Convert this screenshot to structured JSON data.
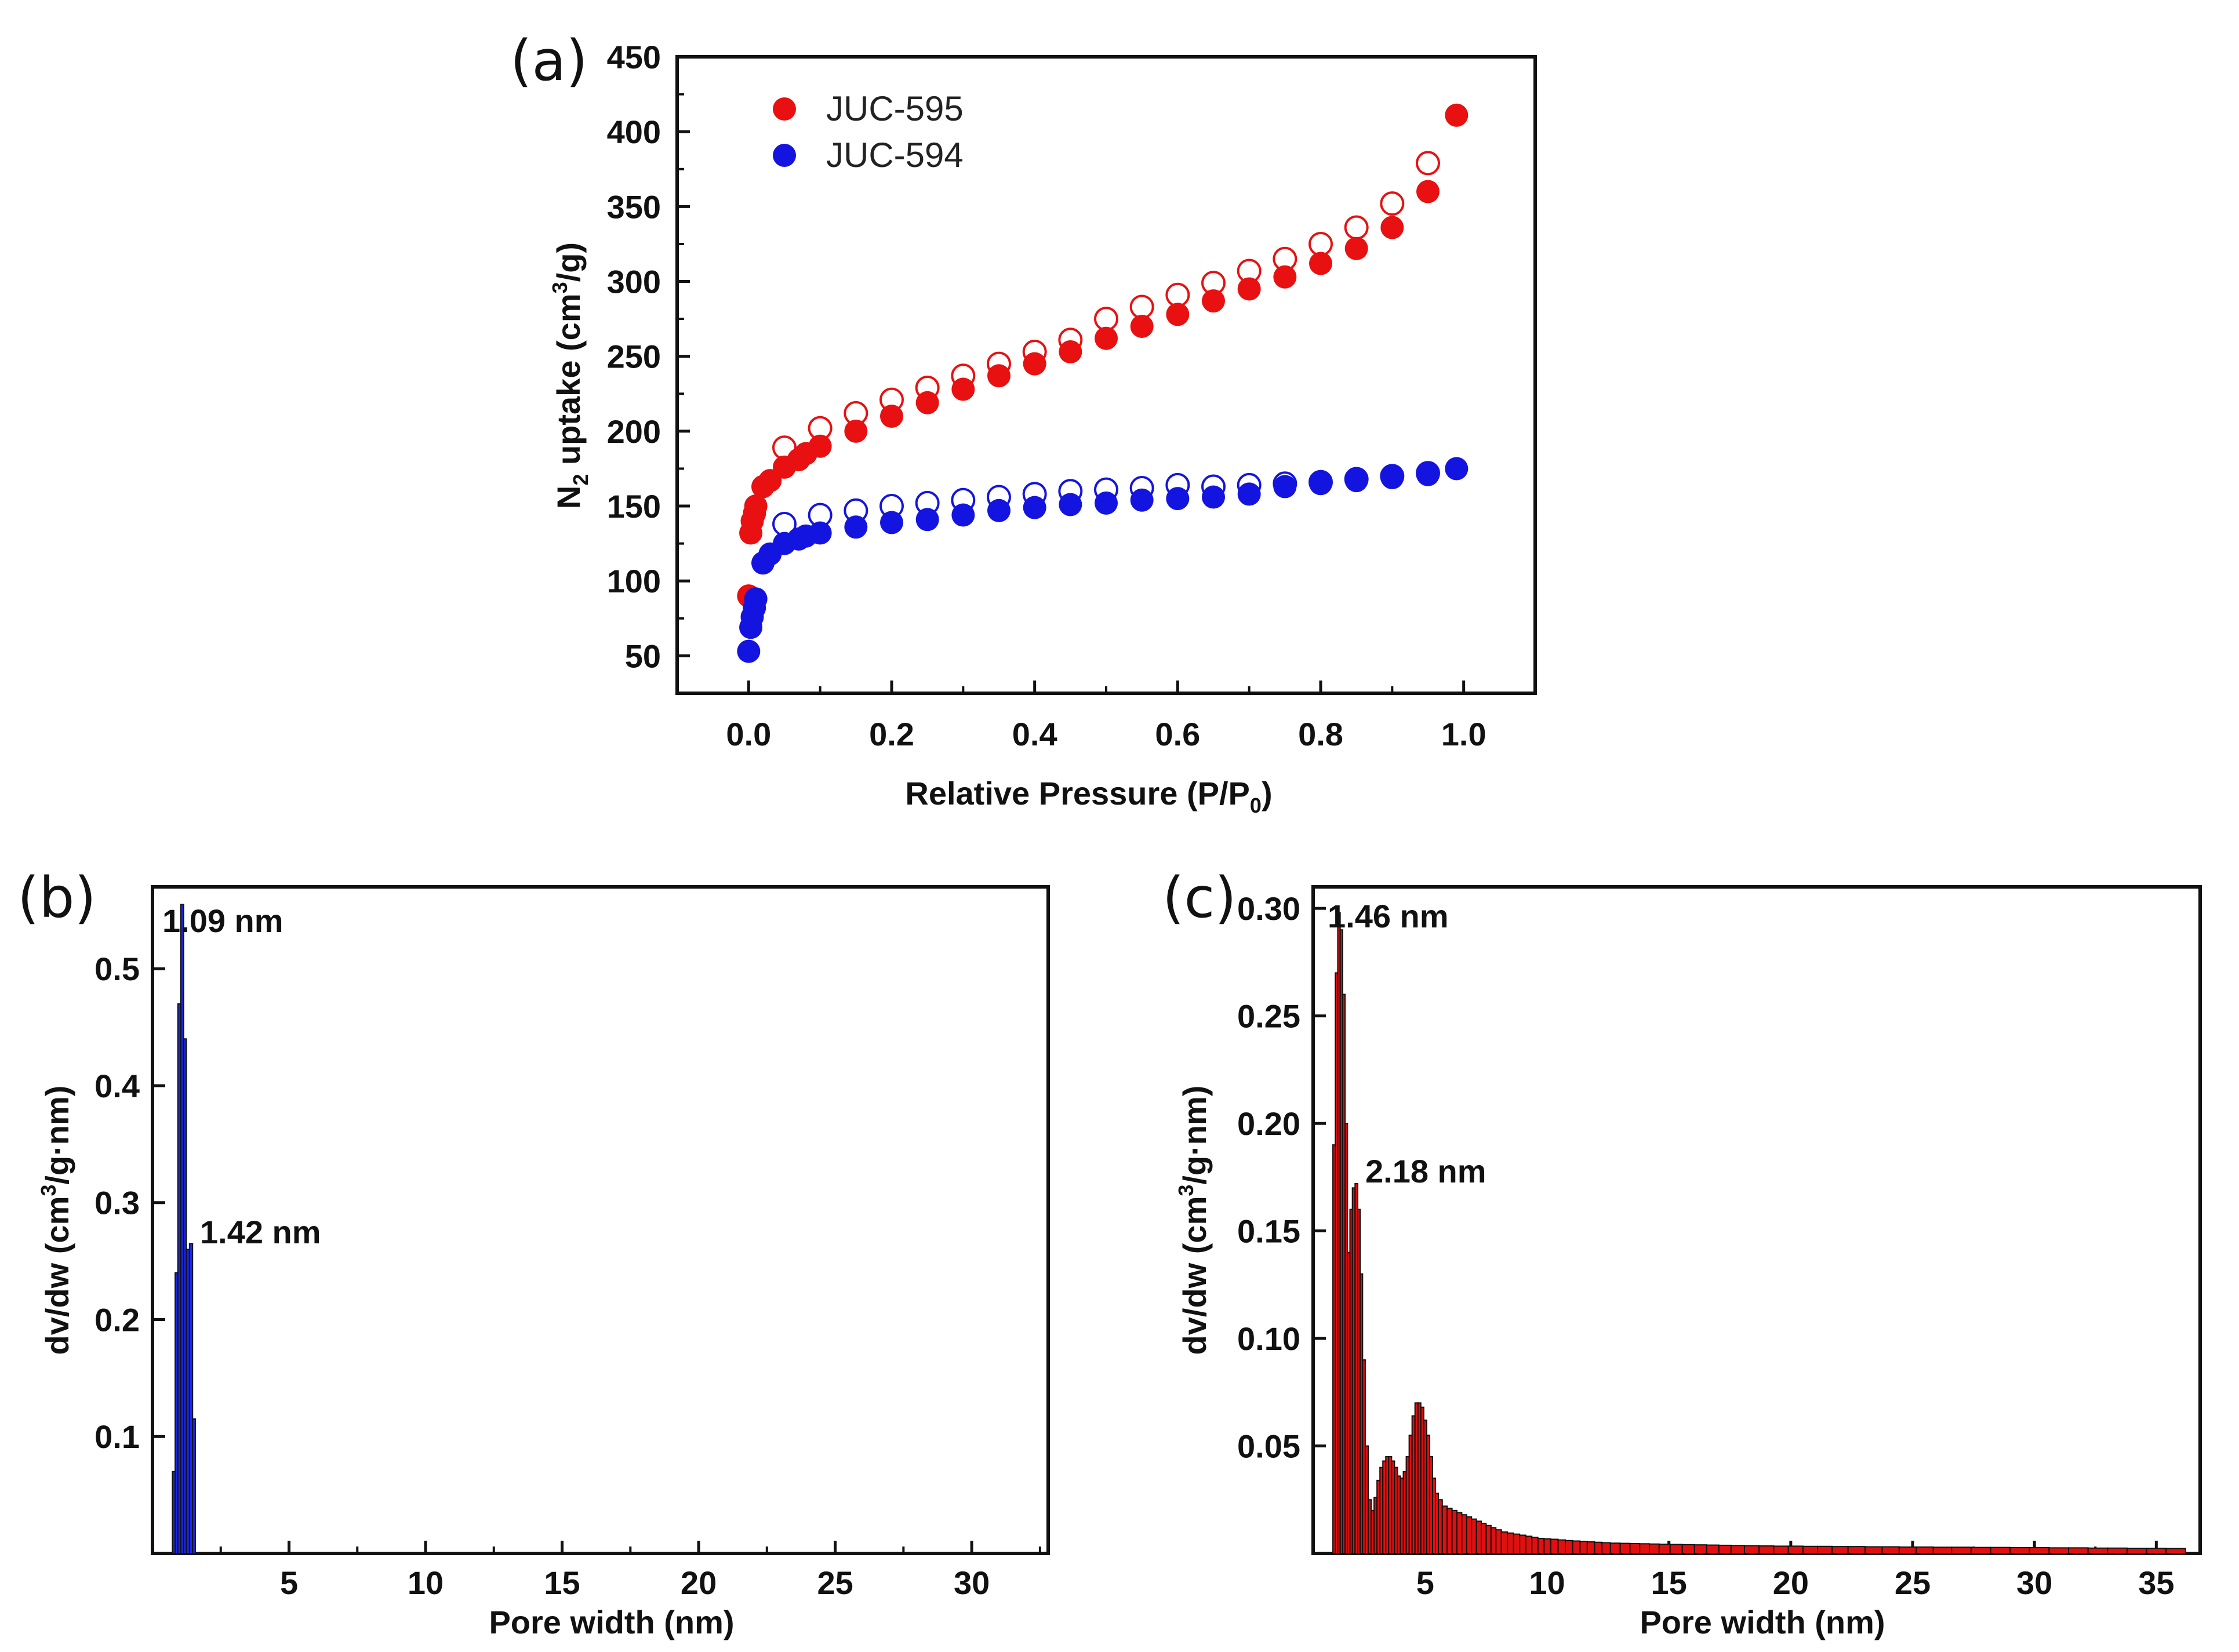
{
  "chart_data": [
    {
      "panel": "(a)",
      "type": "scatter",
      "xlabel_main": "Relative Pressure (P/P",
      "xlabel_sub": "0",
      "xlabel_end": ")",
      "ylabel_main": "N",
      "ylabel_sub": "2",
      "ylabel_mid": " uptake (cm",
      "ylabel_sup": "3",
      "ylabel_end": "/g)",
      "xlim": [
        -0.1,
        1.1
      ],
      "ylim": [
        25,
        450
      ],
      "xticks": [
        "0.0",
        "0.2",
        "0.4",
        "0.6",
        "0.8",
        "1.0"
      ],
      "yticks": [
        "50",
        "100",
        "150",
        "200",
        "250",
        "300",
        "350",
        "400",
        "450"
      ],
      "legend": [
        "JUC-595",
        "JUC-594"
      ],
      "series": [
        {
          "name": "JUC-595",
          "color": "#e81010",
          "adsorption": {
            "x": [
              0.0,
              0.003,
              0.005,
              0.008,
              0.01,
              0.02,
              0.03,
              0.05,
              0.07,
              0.08,
              0.1,
              0.15,
              0.2,
              0.25,
              0.3,
              0.35,
              0.4,
              0.45,
              0.5,
              0.55,
              0.6,
              0.65,
              0.7,
              0.75,
              0.8,
              0.85,
              0.9,
              0.95,
              0.99
            ],
            "y": [
              90,
              132,
              140,
              145,
              150,
              163,
              167,
              176,
              181,
              185,
              190,
              200,
              210,
              219,
              228,
              237,
              245,
              253,
              262,
              270,
              278,
              287,
              295,
              303,
              312,
              322,
              336,
              360,
              411
            ]
          },
          "desorption": {
            "x": [
              0.05,
              0.1,
              0.15,
              0.2,
              0.25,
              0.3,
              0.35,
              0.4,
              0.45,
              0.5,
              0.55,
              0.6,
              0.65,
              0.7,
              0.75,
              0.8,
              0.85,
              0.9,
              0.95
            ],
            "y": [
              189,
              202,
              212,
              221,
              229,
              237,
              245,
              253,
              261,
              275,
              283,
              291,
              299,
              307,
              315,
              325,
              336,
              352,
              379
            ]
          }
        },
        {
          "name": "JUC-594",
          "color": "#1414e0",
          "adsorption": {
            "x": [
              0.0,
              0.003,
              0.005,
              0.008,
              0.01,
              0.02,
              0.03,
              0.05,
              0.07,
              0.08,
              0.1,
              0.15,
              0.2,
              0.25,
              0.3,
              0.35,
              0.4,
              0.45,
              0.5,
              0.55,
              0.6,
              0.65,
              0.7,
              0.75,
              0.8,
              0.85,
              0.9,
              0.95,
              0.99
            ],
            "y": [
              53,
              69,
              76,
              82,
              88,
              112,
              118,
              125,
              128,
              130,
              132,
              136,
              139,
              141,
              144,
              147,
              149,
              151,
              152,
              154,
              155,
              156,
              158,
              163,
              165,
              167,
              169,
              171,
              175
            ]
          },
          "desorption": {
            "x": [
              0.05,
              0.1,
              0.15,
              0.2,
              0.25,
              0.3,
              0.35,
              0.4,
              0.45,
              0.5,
              0.55,
              0.6,
              0.65,
              0.7,
              0.75,
              0.8,
              0.85,
              0.9,
              0.95
            ],
            "y": [
              138,
              144,
              147,
              150,
              152,
              154,
              156,
              158,
              160,
              161,
              162,
              164,
              163,
              164,
              165,
              166,
              168,
              170,
              172
            ]
          }
        }
      ]
    },
    {
      "panel": "(b)",
      "type": "bar",
      "color": "#1a28e8",
      "xlabel": "Pore width (nm)",
      "ylabel_main": "dv/dw (cm",
      "ylabel_sup": "3",
      "ylabel_end": "/g·nm)",
      "xlim": [
        0,
        32.8
      ],
      "ylim": [
        0,
        0.57
      ],
      "xticks": [
        "5",
        "10",
        "15",
        "20",
        "25",
        "30"
      ],
      "yticks": [
        "0.1",
        "0.2",
        "0.3",
        "0.4",
        "0.5"
      ],
      "annotations": [
        "1.09 nm",
        "1.42 nm"
      ],
      "bars": {
        "x": [
          0.78,
          0.88,
          0.98,
          1.09,
          1.19,
          1.29,
          1.42,
          1.52
        ],
        "y": [
          0.07,
          0.24,
          0.47,
          0.555,
          0.44,
          0.26,
          0.265,
          0.115
        ]
      }
    },
    {
      "panel": "(c)",
      "type": "bar",
      "color": "#e01010",
      "xlabel": "Pore width (nm)",
      "ylabel_main": "dv/dw (cm",
      "ylabel_sup": "3",
      "ylabel_end": "/g·nm)",
      "xlim": [
        0.4,
        36.8
      ],
      "ylim": [
        0,
        0.31
      ],
      "xticks": [
        "5",
        "10",
        "15",
        "20",
        "25",
        "30",
        "35"
      ],
      "yticks": [
        "0.05",
        "0.10",
        "0.15",
        "0.20",
        "0.25",
        "0.30"
      ],
      "annotations": [
        "1.46 nm",
        "2.18 nm"
      ],
      "bars": {
        "x": [
          1.26,
          1.36,
          1.46,
          1.56,
          1.66,
          1.76,
          1.86,
          1.96,
          2.06,
          2.18,
          2.28,
          2.38,
          2.48,
          2.6,
          2.72,
          2.84,
          2.96,
          3.08,
          3.2,
          3.32,
          3.44,
          3.56,
          3.68,
          3.8,
          3.92,
          4.04,
          4.16,
          4.28,
          4.4,
          4.52,
          4.64,
          4.76,
          4.88,
          5.0,
          5.12,
          5.24,
          5.36,
          5.48,
          5.6,
          5.8,
          6.0,
          6.2,
          6.4,
          6.6,
          6.8,
          7.0,
          7.2,
          7.4,
          7.6,
          7.8,
          8.0,
          8.25,
          8.5,
          8.75,
          9.0,
          9.25,
          9.5,
          9.75,
          10.0,
          10.3,
          10.6,
          10.9,
          11.2,
          11.5,
          11.8,
          12.1,
          12.4,
          12.8,
          13.2,
          13.6,
          14.0,
          14.4,
          14.8,
          15.3,
          15.8,
          16.3,
          16.8,
          17.3,
          17.8,
          18.4,
          19.0,
          19.6,
          20.2,
          20.8,
          21.4,
          22.0,
          22.7,
          23.4,
          24.1,
          24.8,
          25.5,
          26.2,
          27.0,
          27.8,
          28.6,
          29.4,
          30.2,
          31.0,
          31.8,
          32.6,
          33.4,
          34.2,
          35.0,
          35.8
        ],
        "y": [
          0.19,
          0.27,
          0.298,
          0.29,
          0.26,
          0.2,
          0.14,
          0.16,
          0.17,
          0.172,
          0.16,
          0.13,
          0.09,
          0.05,
          0.025,
          0.02,
          0.026,
          0.034,
          0.04,
          0.043,
          0.045,
          0.045,
          0.043,
          0.04,
          0.036,
          0.035,
          0.038,
          0.045,
          0.055,
          0.064,
          0.07,
          0.07,
          0.068,
          0.062,
          0.055,
          0.045,
          0.035,
          0.028,
          0.025,
          0.022,
          0.021,
          0.02,
          0.019,
          0.018,
          0.017,
          0.016,
          0.015,
          0.014,
          0.013,
          0.012,
          0.011,
          0.01,
          0.0095,
          0.009,
          0.0085,
          0.008,
          0.0075,
          0.007,
          0.0068,
          0.0066,
          0.0063,
          0.006,
          0.0058,
          0.0056,
          0.0054,
          0.0052,
          0.005,
          0.0048,
          0.0047,
          0.0046,
          0.0045,
          0.0044,
          0.0043,
          0.0042,
          0.0041,
          0.004,
          0.0039,
          0.0038,
          0.0037,
          0.0036,
          0.0035,
          0.0034,
          0.0034,
          0.0033,
          0.0033,
          0.0032,
          0.0032,
          0.0031,
          0.0031,
          0.003,
          0.003,
          0.0029,
          0.0029,
          0.0028,
          0.0028,
          0.0027,
          0.0027,
          0.0026,
          0.0026,
          0.0025,
          0.0025,
          0.0024,
          0.0024,
          0.0023
        ]
      }
    }
  ]
}
